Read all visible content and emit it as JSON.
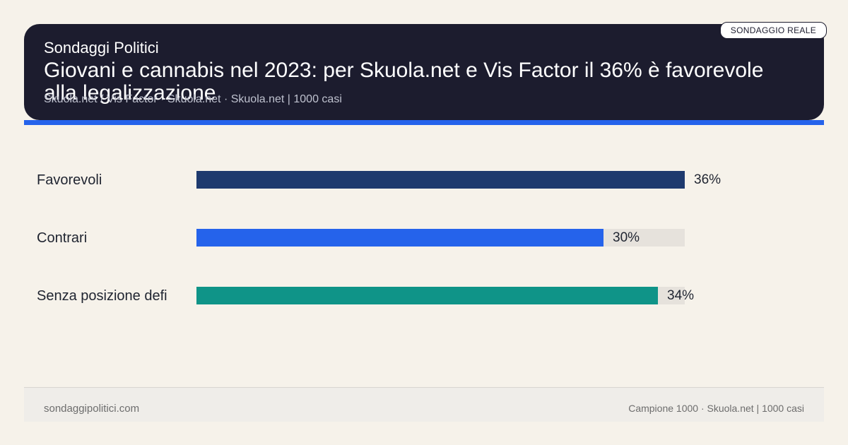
{
  "header": {
    "kicker": "Sondaggi Politici",
    "title": "Giovani e cannabis nel 2023: per Skuola.net e Vis Factor il 36% è favorevole alla legalizzazione",
    "source": "Skuola.net / Vis Factor · Skuola.net · Skuola.net | 1000 casi",
    "badge": "SONDAGGIO REALE"
  },
  "chart_data": {
    "type": "bar",
    "orientation": "horizontal",
    "categories": [
      "Favorevoli",
      "Contrari",
      "Senza posizione defi"
    ],
    "values": [
      36,
      30,
      34
    ],
    "value_labels": [
      "36%",
      "30%",
      "34%"
    ],
    "xlim": [
      0,
      36
    ],
    "colors": [
      "#1e3a6e",
      "#2563eb",
      "#0f9488"
    ]
  },
  "footer": {
    "site": "sondaggipolitici.com",
    "sample": "Campione 1000 · Skuola.net | 1000 casi"
  }
}
